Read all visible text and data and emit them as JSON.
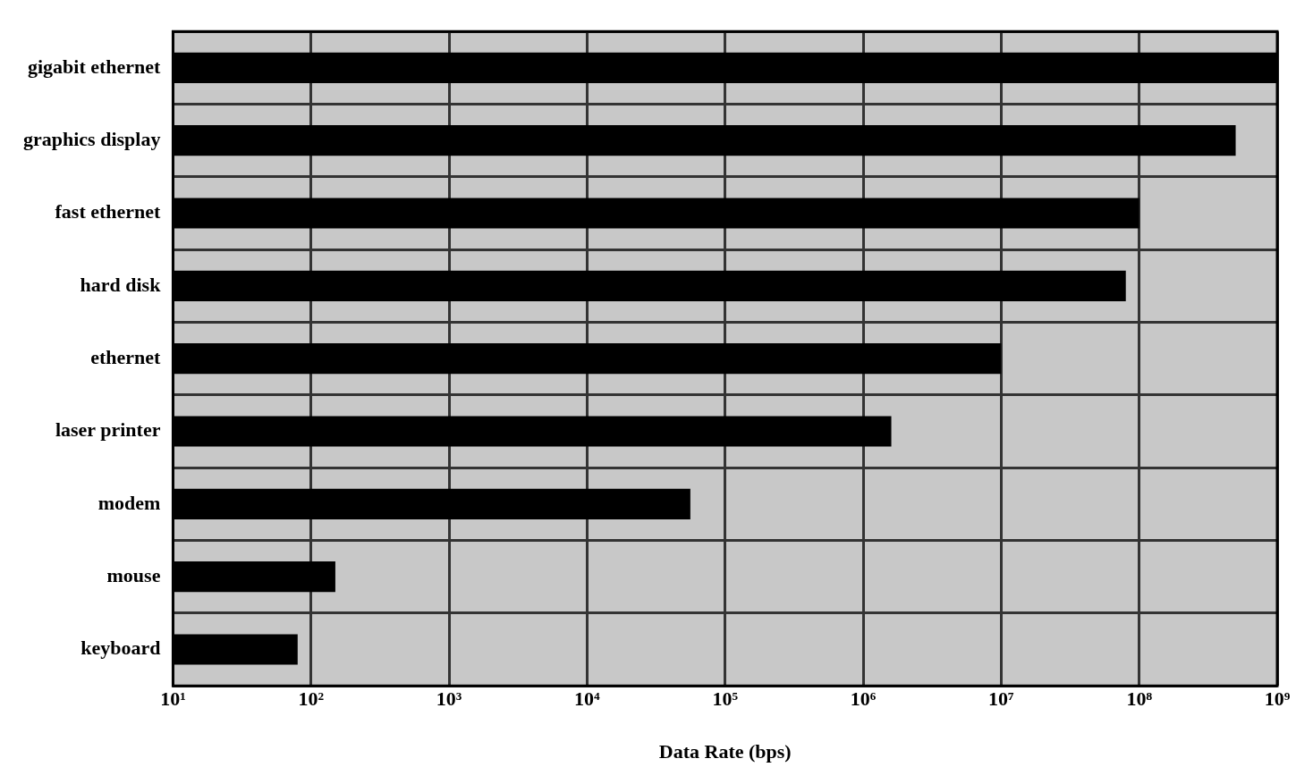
{
  "chart_data": {
    "type": "bar",
    "orientation": "horizontal",
    "xlabel": "Data Rate (bps)",
    "categories": [
      "gigabit ethernet",
      "graphics display",
      "fast ethernet",
      "hard disk",
      "ethernet",
      "laser printer",
      "modem",
      "mouse",
      "keyboard"
    ],
    "values": [
      1000000000,
      500000000,
      100000000,
      80000000,
      10000000,
      1600000,
      56000,
      150,
      80
    ],
    "color": "#000000",
    "log": "x",
    "xlim": [
      10,
      1000000000
    ],
    "xticks": [
      {
        "value": 10,
        "label": "10¹"
      },
      {
        "value": 100,
        "label": "10²"
      },
      {
        "value": 1000,
        "label": "10³"
      },
      {
        "value": 10000,
        "label": "10⁴"
      },
      {
        "value": 100000,
        "label": "10⁵"
      },
      {
        "value": 1000000,
        "label": "10⁶"
      },
      {
        "value": 10000000,
        "label": "10⁷"
      },
      {
        "value": 100000000,
        "label": "10⁸"
      },
      {
        "value": 1000000000,
        "label": "10⁹"
      }
    ],
    "grid": true
  }
}
